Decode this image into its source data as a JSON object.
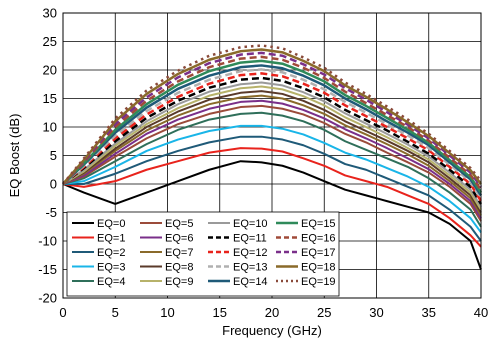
{
  "chart_data": {
    "type": "line",
    "title": "",
    "xlabel": "Frequency (GHz)",
    "ylabel": "EQ Boost (dB)",
    "xlim": [
      0,
      40
    ],
    "ylim": [
      -20,
      30
    ],
    "xticks": [
      "0",
      "5",
      "10",
      "15",
      "20",
      "25",
      "30",
      "35",
      "40"
    ],
    "yticks": [
      "-20",
      "-15",
      "-10",
      "-5",
      "0",
      "5",
      "10",
      "15",
      "20",
      "25",
      "30"
    ],
    "grid": true,
    "legend": "bottom-left",
    "x": [
      0,
      2,
      5,
      8,
      11,
      14,
      17,
      19,
      21,
      23,
      25,
      27,
      29,
      31,
      33,
      35,
      37,
      39,
      40
    ],
    "series": [
      {
        "name": "EQ=0",
        "color": "#000000",
        "dash": "solid",
        "width": 2,
        "values": [
          0,
          -1.5,
          -3.5,
          -1.5,
          0.5,
          2.5,
          4,
          3.8,
          3.2,
          2,
          0.5,
          -1,
          -2,
          -3,
          -4,
          -5,
          -7,
          -10,
          -15
        ]
      },
      {
        "name": "EQ=1",
        "color": "#e8231c",
        "dash": "solid",
        "width": 2,
        "values": [
          0,
          -0.5,
          0.5,
          2.5,
          4,
          5.5,
          6.3,
          6.2,
          5.7,
          4.5,
          3.2,
          1.5,
          0.5,
          -0.5,
          -2,
          -3.5,
          -6,
          -9,
          -11
        ]
      },
      {
        "name": "EQ=2",
        "color": "#1f5a78",
        "dash": "solid",
        "width": 2,
        "values": [
          0,
          0,
          1.8,
          4,
          5.8,
          7.3,
          8.3,
          8.3,
          7.8,
          6.8,
          5.3,
          3.5,
          2.5,
          1,
          -0.5,
          -2,
          -4.5,
          -7.5,
          -10
        ]
      },
      {
        "name": "EQ=3",
        "color": "#19b5e8",
        "dash": "solid",
        "width": 2,
        "values": [
          0,
          0.5,
          3,
          5.8,
          7.8,
          9.3,
          10.2,
          10.2,
          9.7,
          8.7,
          7.2,
          5.5,
          4.3,
          2.8,
          1.3,
          -0.5,
          -3,
          -6,
          -8.5
        ]
      },
      {
        "name": "EQ=4",
        "color": "#2f6f5a",
        "dash": "solid",
        "width": 2,
        "values": [
          0,
          1,
          4,
          7,
          9.5,
          11.3,
          12.3,
          12.5,
          12,
          11,
          9.5,
          7.5,
          6,
          4.5,
          3,
          1,
          -1.5,
          -4.5,
          -7.5
        ]
      },
      {
        "name": "EQ=5",
        "color": "#9b4b3a",
        "dash": "solid",
        "width": 2,
        "values": [
          0,
          1.3,
          4.8,
          8,
          10.5,
          12.3,
          13.5,
          13.7,
          13.2,
          12.2,
          10.7,
          8.8,
          7.3,
          5.5,
          3.8,
          2,
          -0.5,
          -3.5,
          -6.5
        ]
      },
      {
        "name": "EQ=6",
        "color": "#7a2f8a",
        "dash": "solid",
        "width": 2,
        "values": [
          0,
          1.5,
          5.3,
          8.8,
          11.3,
          13.2,
          14.4,
          14.6,
          14.1,
          13,
          11.5,
          9.6,
          8,
          6.3,
          4.5,
          2.6,
          0,
          -3,
          -6
        ]
      },
      {
        "name": "EQ=7",
        "color": "#8a6a2a",
        "dash": "solid",
        "width": 2,
        "values": [
          0,
          1.8,
          5.8,
          9.4,
          12,
          14,
          15.2,
          15.5,
          15,
          13.8,
          12.3,
          10.3,
          8.7,
          7,
          5.2,
          3.2,
          0.5,
          -2.5,
          -5.5
        ]
      },
      {
        "name": "EQ=8",
        "color": "#5a3a2a",
        "dash": "solid",
        "width": 2,
        "values": [
          0,
          2,
          6.2,
          10,
          12.7,
          14.8,
          16,
          16.3,
          15.8,
          14.6,
          13,
          11,
          9.3,
          7.6,
          5.8,
          3.8,
          1,
          -2,
          -5
        ]
      },
      {
        "name": "EQ=9",
        "color": "#b7b26a",
        "dash": "solid",
        "width": 2,
        "values": [
          0,
          2.2,
          6.7,
          10.5,
          13.3,
          15.5,
          16.8,
          17.1,
          16.6,
          15.4,
          13.8,
          11.7,
          10,
          8.2,
          6.3,
          4.3,
          1.5,
          -1.5,
          -4.5
        ]
      },
      {
        "name": "EQ=10",
        "color": "#9a9a9a",
        "dash": "solid",
        "width": 2,
        "values": [
          0,
          2.5,
          7.1,
          11,
          14,
          16.2,
          17.5,
          17.8,
          17.3,
          16.1,
          14.5,
          12.4,
          10.6,
          8.8,
          6.9,
          4.8,
          2,
          -1,
          -4
        ]
      },
      {
        "name": "EQ=11",
        "color": "#000000",
        "dash": "dash",
        "width": 2.5,
        "values": [
          0,
          2.8,
          7.5,
          11.6,
          14.6,
          16.9,
          18.3,
          18.6,
          18.1,
          16.8,
          15.2,
          13,
          11.2,
          9.4,
          7.4,
          5.3,
          2.5,
          -0.5,
          -3.5
        ]
      },
      {
        "name": "EQ=12",
        "color": "#e8231c",
        "dash": "dash",
        "width": 2.5,
        "values": [
          0,
          3,
          8,
          12.2,
          15.3,
          17.6,
          19.1,
          19.4,
          18.9,
          17.6,
          16,
          13.8,
          11.9,
          10,
          8,
          5.9,
          3,
          0,
          -3
        ]
      },
      {
        "name": "EQ=13",
        "color": "#b0b0b0",
        "dash": "dash",
        "width": 2.5,
        "values": [
          0,
          3.2,
          8.5,
          12.8,
          16,
          18.3,
          19.8,
          20.1,
          19.6,
          18.3,
          16.6,
          14.4,
          12.5,
          10.5,
          8.5,
          6.3,
          3.4,
          0.4,
          -2.5
        ]
      },
      {
        "name": "EQ=14",
        "color": "#1f5a78",
        "dash": "solid",
        "width": 2.5,
        "values": [
          0,
          3.4,
          9,
          13.4,
          16.7,
          19,
          20.5,
          20.8,
          20.3,
          19,
          17.3,
          15,
          13.1,
          11,
          9,
          6.8,
          3.8,
          0.8,
          -2
        ]
      },
      {
        "name": "EQ=15",
        "color": "#2f8a5a",
        "dash": "solid",
        "width": 2.5,
        "values": [
          0,
          3.6,
          9.5,
          14,
          17.4,
          19.8,
          21.3,
          21.6,
          21.1,
          19.7,
          18,
          15.6,
          13.7,
          11.6,
          9.5,
          7.2,
          4.2,
          1.2,
          -1.5
        ]
      },
      {
        "name": "EQ=16",
        "color": "#a04a38",
        "dash": "dash",
        "width": 2.5,
        "values": [
          0,
          3.8,
          10,
          14.6,
          18,
          20.5,
          22,
          22.3,
          21.8,
          20.4,
          18.6,
          16.2,
          14.2,
          12.1,
          10,
          7.6,
          4.6,
          1.6,
          -1
        ]
      },
      {
        "name": "EQ=17",
        "color": "#7a2f8a",
        "dash": "dash",
        "width": 2.5,
        "values": [
          0,
          4,
          10.5,
          15.2,
          18.7,
          21.2,
          22.7,
          23,
          22.5,
          21,
          19.2,
          16.8,
          14.8,
          12.6,
          10.4,
          8,
          5,
          2,
          -0.5
        ]
      },
      {
        "name": "EQ=18",
        "color": "#8a6a2a",
        "dash": "solid",
        "width": 2.5,
        "values": [
          0,
          4.2,
          11,
          15.8,
          19.3,
          21.8,
          23.3,
          23.6,
          23.1,
          21.6,
          19.8,
          17.3,
          15.3,
          13.1,
          10.8,
          8.4,
          5.4,
          2.4,
          0
        ]
      },
      {
        "name": "EQ=19",
        "color": "#8a4a3a",
        "dash": "dot",
        "width": 2.5,
        "values": [
          0,
          4.5,
          11.5,
          16.4,
          19.9,
          22.5,
          24,
          24.3,
          23.8,
          22.2,
          20.4,
          17.8,
          15.8,
          13.6,
          11.3,
          8.8,
          5.8,
          2.8,
          0.5
        ]
      }
    ]
  }
}
